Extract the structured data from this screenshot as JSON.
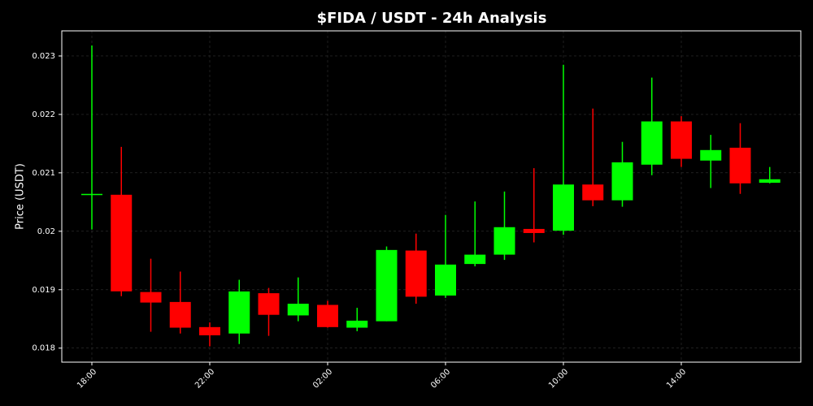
{
  "chart_data": {
    "type": "candlestick",
    "title": "$FIDA / USDT - 24h Analysis",
    "ylabel": "Price (USDT)",
    "categories": [
      "18:00",
      null,
      null,
      null,
      "22:00",
      null,
      null,
      null,
      "02:00",
      null,
      null,
      null,
      "06:00",
      null,
      null,
      null,
      "10:00",
      null,
      null,
      null,
      "14:00",
      null,
      null,
      null
    ],
    "open": [
      0.02064,
      0.020625,
      0.01896,
      0.01879,
      0.01836,
      0.01825,
      0.01894,
      0.01856,
      0.01874,
      0.01835,
      0.01846,
      0.01967,
      0.0189,
      0.01944,
      0.0196,
      0.02004,
      0.02001,
      0.0208,
      0.02053,
      0.02114,
      0.02188,
      0.02121,
      0.02143,
      0.02083
    ],
    "high": [
      0.02318,
      0.021444,
      0.01953,
      0.01931,
      0.01844,
      0.01917,
      0.01903,
      0.01921,
      0.01881,
      0.01869,
      0.01974,
      0.01996,
      0.02028,
      0.02051,
      0.02068,
      0.02108,
      0.02285,
      0.0221,
      0.02153,
      0.02263,
      0.02197,
      0.02165,
      0.02185,
      0.0211
    ],
    "low": [
      0.02003,
      0.01889,
      0.01828,
      0.01825,
      0.01803,
      0.01807,
      0.01821,
      0.01846,
      0.01835,
      0.01829,
      0.01846,
      0.01876,
      0.01886,
      0.0194,
      0.01951,
      0.01981,
      0.01994,
      0.02043,
      0.02042,
      0.02096,
      0.0211,
      0.02074,
      0.02064,
      0.02082
    ],
    "close": [
      0.02064,
      0.018972,
      0.01878,
      0.01835,
      0.01822,
      0.01897,
      0.01857,
      0.01876,
      0.01836,
      0.01847,
      0.01968,
      0.01888,
      0.01943,
      0.0196,
      0.02007,
      0.01997,
      0.0208,
      0.02053,
      0.02118,
      0.02188,
      0.02124,
      0.02139,
      0.02082,
      0.02089
    ],
    "up_color": "#00ff00",
    "down_color": "#ff0000",
    "ylim": [
      0.01776,
      0.02343
    ],
    "yticks": [
      0.018,
      0.019,
      0.02,
      0.021,
      0.022,
      0.023
    ],
    "grid": true
  }
}
